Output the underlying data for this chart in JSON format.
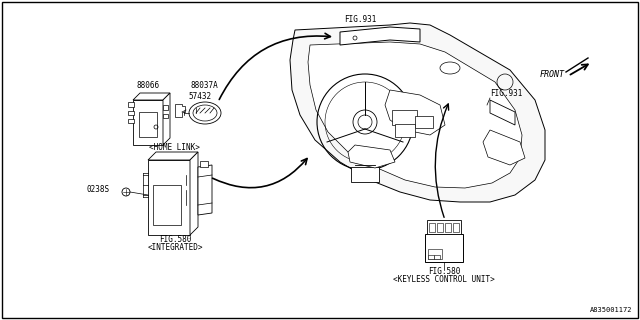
{
  "bg_color": "#ffffff",
  "border_color": "#000000",
  "text_color": "#000000",
  "diagram_id": "A835001172",
  "labels": {
    "fig931_top": "FIG.931",
    "fig931_side": "FIG.931",
    "front": "FRONT",
    "homelink": "<HOME LINK>",
    "fig580_left": "FIG.580",
    "integrated": "<INTEGRATED>",
    "fig580_right": "FIG.580",
    "keyless": "<KEYLESS CONTROL UNIT>",
    "part_88066": "88066",
    "part_88037A": "88037A",
    "part_57432": "57432",
    "part_0238S": "0238S"
  },
  "font_sizes": {
    "part_label": 5.5,
    "caption": 5.5,
    "fig_label": 5.5,
    "diagram_id": 5,
    "front_label": 6
  }
}
